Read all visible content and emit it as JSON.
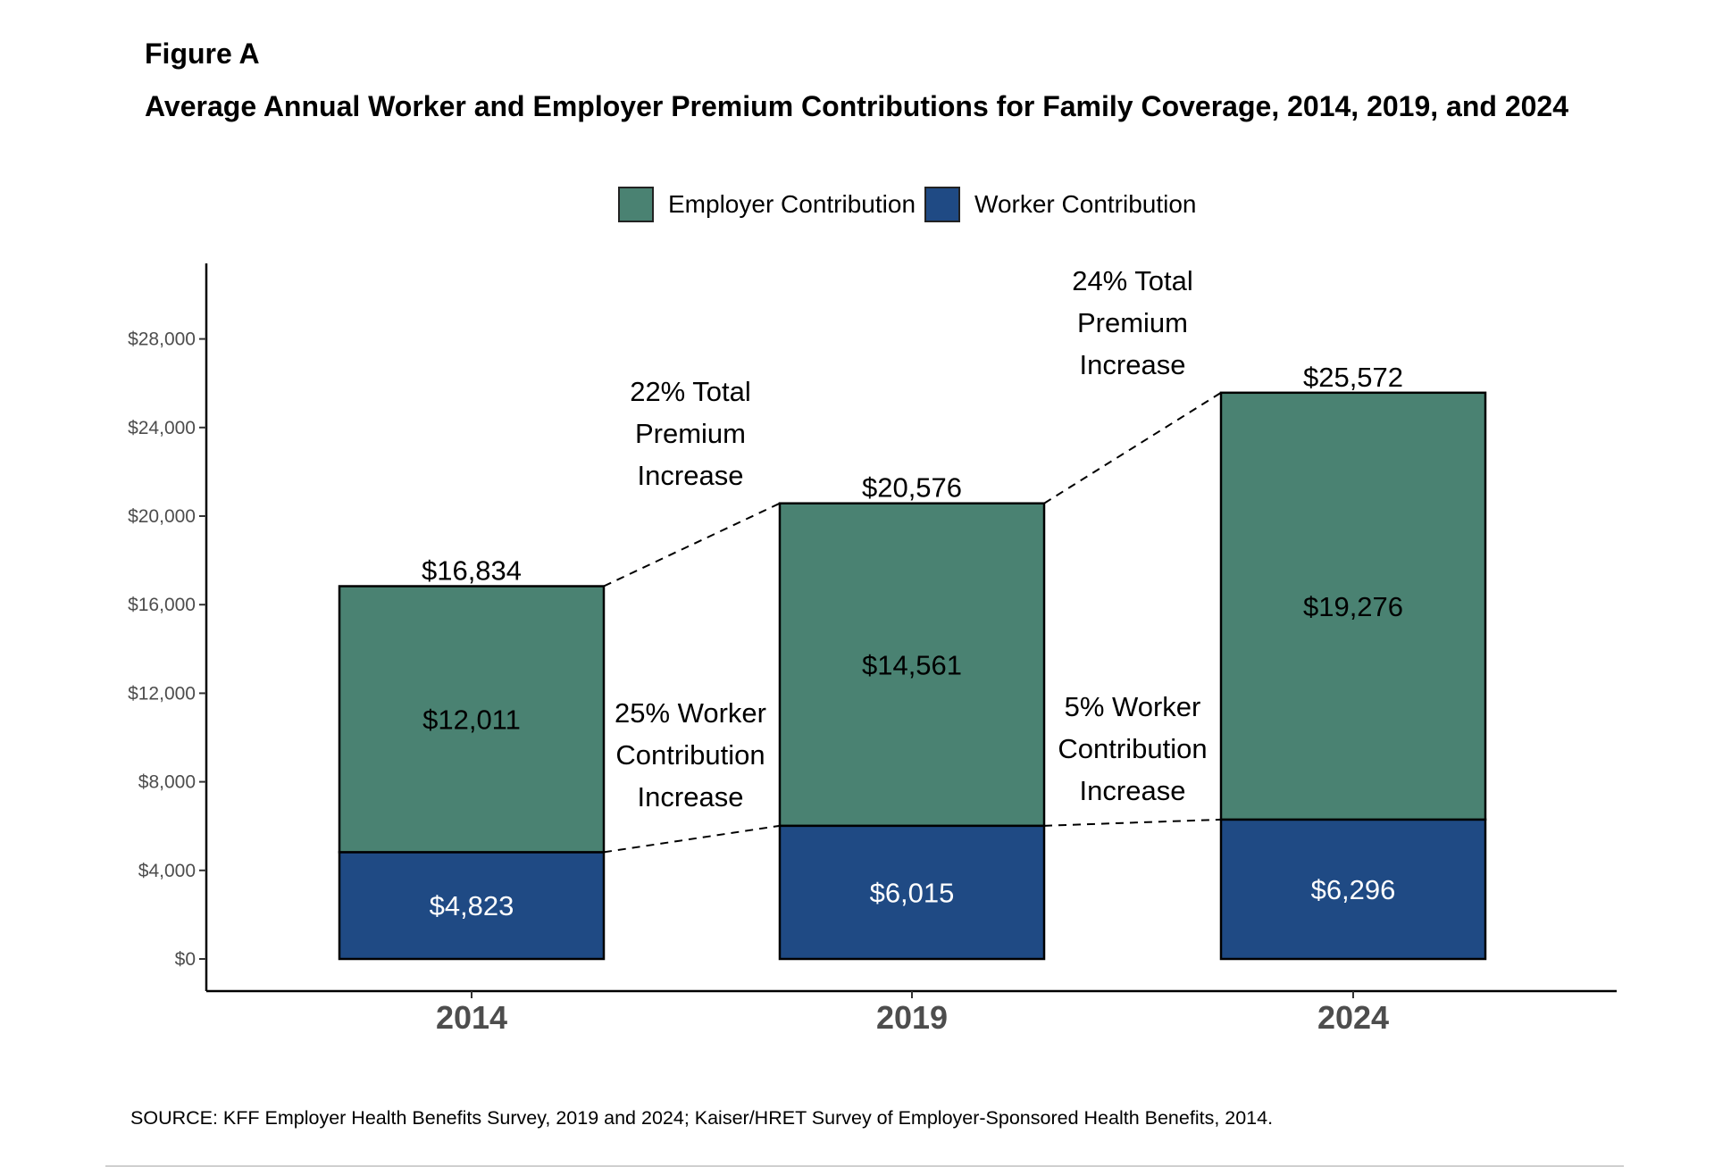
{
  "figure": {
    "label": "Figure A",
    "title": "Average Annual Worker and Employer Premium Contributions for Family Coverage, 2014, 2019, and 2024",
    "source": "SOURCE: KFF Employer Health Benefits Survey, 2019 and 2024; Kaiser/HRET Survey of Employer-Sponsored Health Benefits, 2014."
  },
  "legend": [
    {
      "name": "Employer Contribution",
      "color": "#4a8272"
    },
    {
      "name": "Worker Contribution",
      "color": "#1f4a84"
    }
  ],
  "chart_data": {
    "type": "bar",
    "stacked": true,
    "categories": [
      "2014",
      "2019",
      "2024"
    ],
    "series": [
      {
        "name": "Worker Contribution",
        "values": [
          4823,
          6015,
          6296
        ],
        "labels": [
          "$4,823",
          "$6,015",
          "$6,296"
        ],
        "color": "#1f4a84",
        "label_color": "#ffffff"
      },
      {
        "name": "Employer Contribution",
        "values": [
          12011,
          14561,
          19276
        ],
        "labels": [
          "$12,011",
          "$14,561",
          "$19,276"
        ],
        "color": "#4a8272",
        "label_color": "#000000"
      }
    ],
    "totals": [
      16834,
      20576,
      25572
    ],
    "total_labels": [
      "$16,834",
      "$20,576",
      "$25,572"
    ],
    "ylim": [
      0,
      29800
    ],
    "yticks": [
      0,
      4000,
      8000,
      12000,
      16000,
      20000,
      24000,
      28000
    ],
    "ytick_labels": [
      "$0",
      "$4,000",
      "$8,000",
      "$12,000",
      "$16,000",
      "$20,000",
      "$24,000",
      "$28,000"
    ],
    "title": "",
    "xlabel": "",
    "ylabel": "",
    "grid": false,
    "legend_position": "top",
    "annotations": [
      {
        "between": [
          0,
          1
        ],
        "kind": "total",
        "lines": [
          "22% Total",
          "Premium",
          "Increase"
        ]
      },
      {
        "between": [
          1,
          2
        ],
        "kind": "total",
        "lines": [
          "24% Total",
          "Premium",
          "Increase"
        ]
      },
      {
        "between": [
          0,
          1
        ],
        "kind": "worker",
        "lines": [
          "25% Worker",
          "Contribution",
          "Increase"
        ]
      },
      {
        "between": [
          1,
          2
        ],
        "kind": "worker",
        "lines": [
          "5% Worker",
          "Contribution",
          "Increase"
        ]
      }
    ]
  }
}
